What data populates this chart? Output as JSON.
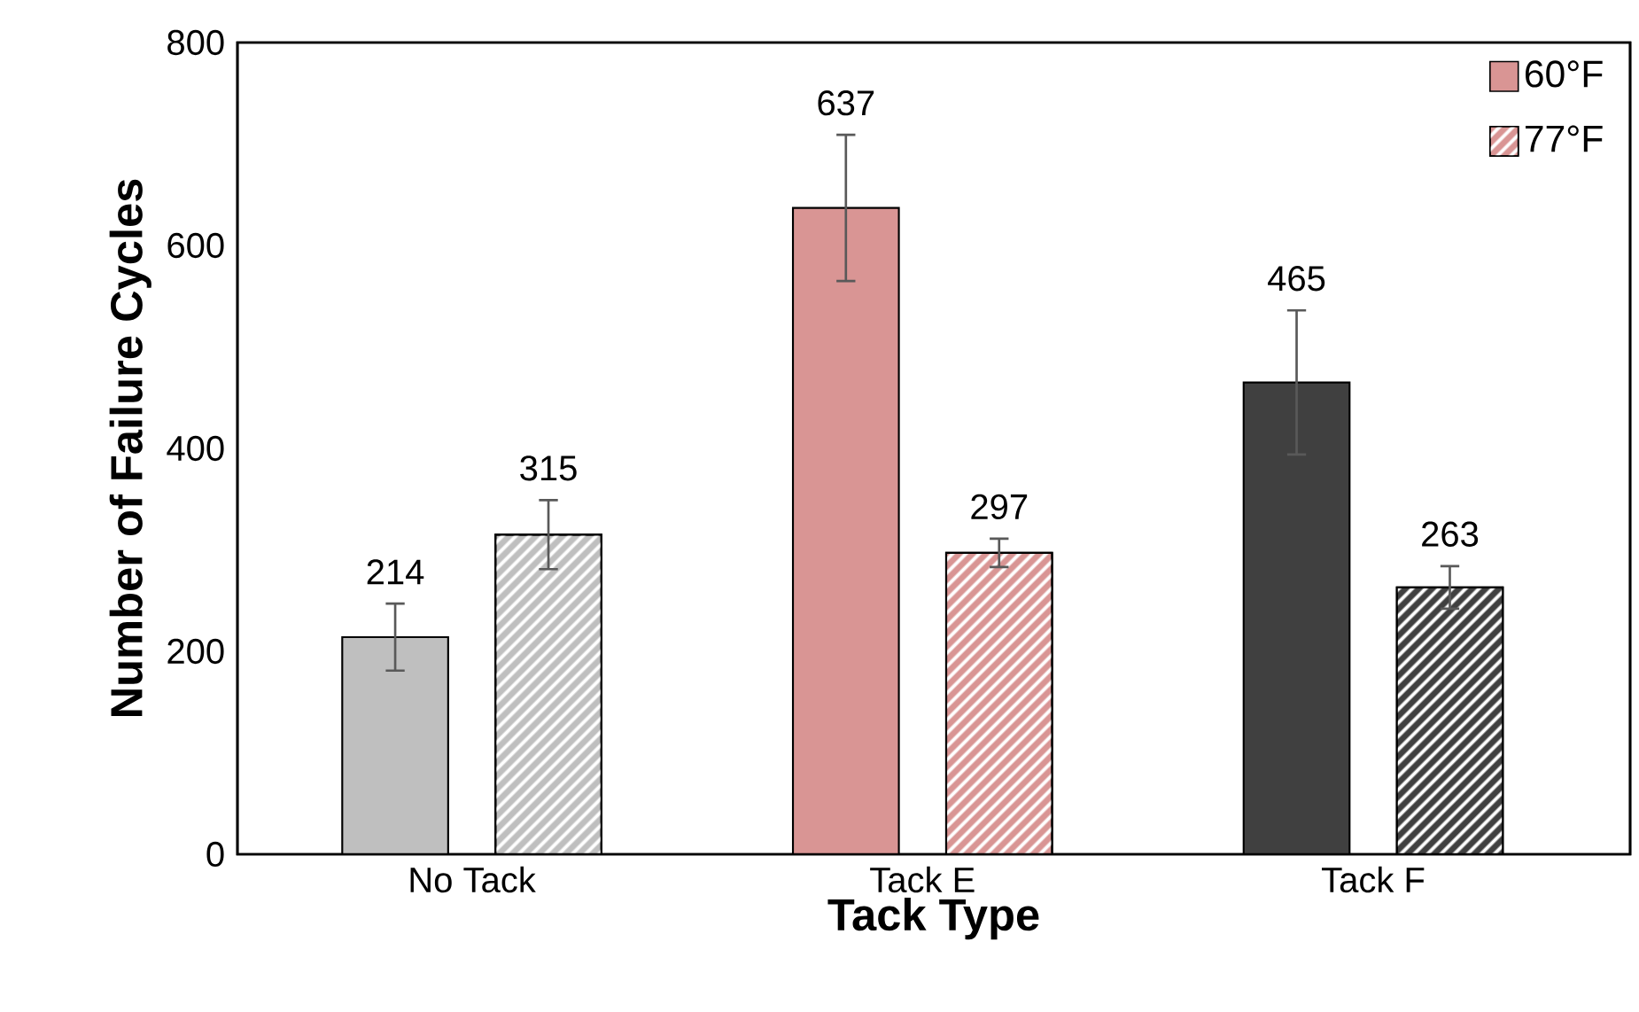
{
  "chart_data": {
    "type": "bar",
    "xlabel": "Tack Type",
    "ylabel": "Number of Failure Cycles",
    "categories": [
      "No Tack",
      "Tack E",
      "Tack F"
    ],
    "series": [
      {
        "name": "60°F",
        "color": "#d99594",
        "colors": [
          "#bfbfbf",
          "#d99594",
          "#404040"
        ],
        "values": [
          214,
          637,
          465
        ],
        "errors": [
          33,
          72,
          71
        ]
      },
      {
        "name": "77°F",
        "color": "#d99594",
        "colors": [
          "#bfbfbf",
          "#d99594",
          "#404040"
        ],
        "values": [
          315,
          297,
          263
        ],
        "errors": [
          34,
          14,
          21
        ]
      }
    ],
    "ylim": [
      0,
      800
    ],
    "yticks": [
      0,
      200,
      400,
      600,
      800
    ],
    "grid": false,
    "legend": "top right",
    "data_labels": true
  }
}
